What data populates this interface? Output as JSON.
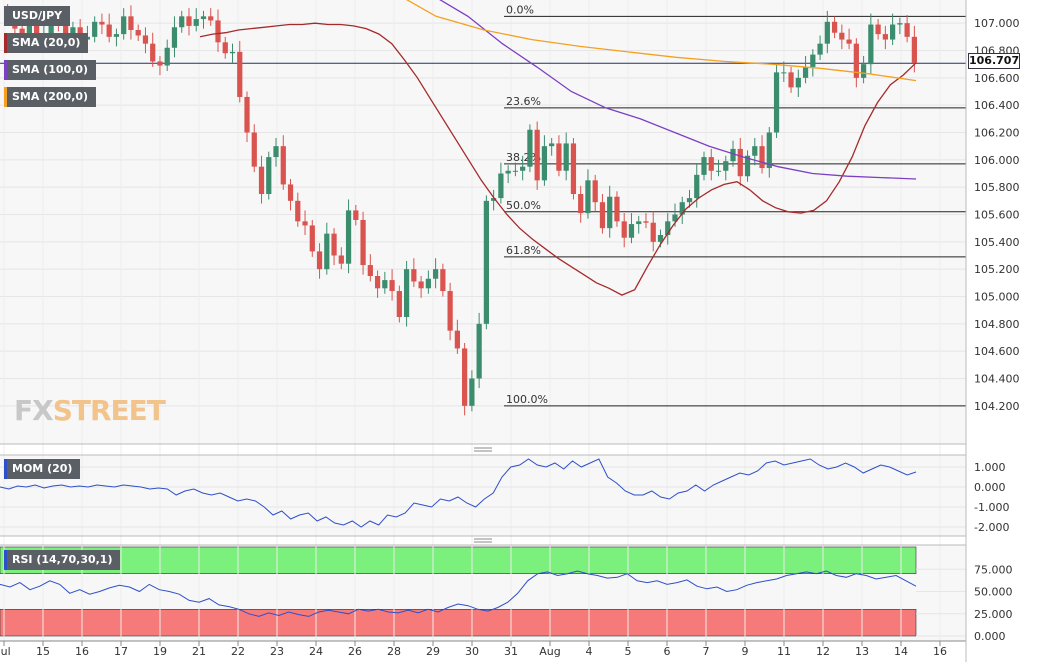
{
  "legend": {
    "symbol": "USD/JPY",
    "sma20": "SMA (20,0)",
    "sma100": "SMA (100,0)",
    "sma200": "SMA (200,0)"
  },
  "colors": {
    "up": "#3c8c6e",
    "down": "#d9534f",
    "sma20": "#a52a2a",
    "sma100": "#7b3fc4",
    "sma200": "#f5a020",
    "mom": "#2e4fc9",
    "rsi": "#2e4fc9",
    "rsi_over": "#7cf07c",
    "rsi_under": "#f77a7a"
  },
  "watermark": {
    "fx": "FX",
    "street": "STREET"
  },
  "current_price": "106.707",
  "chart_data": {
    "type": "candlestick",
    "timeframe_note": "4h candles",
    "x_ticks": [
      "Jul",
      "15",
      "16",
      "17",
      "19",
      "21",
      "22",
      "23",
      "24",
      "26",
      "28",
      "29",
      "30",
      "31",
      "Aug",
      "4",
      "5",
      "6",
      "7",
      "9",
      "11",
      "12",
      "13",
      "14",
      "16"
    ],
    "price_axis": {
      "ylim": [
        104.1,
        107.1
      ],
      "ticks": [
        "107.000",
        "106.800",
        "106.600",
        "106.400",
        "106.200",
        "106.000",
        "105.800",
        "105.600",
        "105.400",
        "105.200",
        "105.000",
        "104.800",
        "104.600",
        "104.400",
        "104.200"
      ]
    },
    "fibonacci": [
      {
        "label": "0.0%",
        "price": 107.05
      },
      {
        "label": "23.6%",
        "price": 106.38
      },
      {
        "label": "38.2%",
        "price": 105.97
      },
      {
        "label": "50.0%",
        "price": 105.62
      },
      {
        "label": "61.8%",
        "price": 105.29
      },
      {
        "label": "100.0%",
        "price": 104.2
      }
    ],
    "close": [
      107.05,
      106.96,
      106.88,
      106.98,
      106.86,
      106.92,
      107.05,
      107.01,
      106.92,
      106.97,
      106.88,
      106.9,
      107.01,
      106.99,
      106.9,
      106.92,
      107.05,
      106.95,
      106.91,
      106.85,
      106.72,
      106.69,
      106.82,
      106.97,
      107.05,
      106.98,
      107.03,
      107.05,
      107.02,
      106.86,
      106.78,
      106.79,
      106.46,
      106.2,
      105.95,
      105.75,
      106.02,
      106.1,
      105.82,
      105.7,
      105.55,
      105.52,
      105.33,
      105.2,
      105.46,
      105.3,
      105.24,
      105.63,
      105.56,
      105.23,
      105.15,
      105.06,
      105.12,
      105.04,
      104.85,
      105.2,
      105.11,
      105.06,
      105.13,
      105.2,
      105.04,
      104.75,
      104.62,
      104.2,
      104.4,
      104.8,
      105.7,
      105.72,
      105.9,
      105.92,
      105.92,
      105.95,
      106.22,
      105.85,
      106.1,
      106.12,
      105.92,
      106.12,
      105.75,
      105.61,
      105.85,
      105.69,
      105.5,
      105.73,
      105.55,
      105.43,
      105.53,
      105.55,
      105.54,
      105.4,
      105.45,
      105.55,
      105.6,
      105.69,
      105.72,
      105.89,
      106.02,
      105.92,
      105.92,
      105.99,
      106.08,
      105.88,
      106.03,
      106.1,
      105.94,
      106.2,
      106.64,
      106.64,
      106.53,
      106.6,
      106.68,
      106.77,
      106.85,
      107.01,
      106.93,
      106.88,
      106.85,
      106.6,
      106.7,
      106.99,
      106.92,
      106.88,
      106.99,
      107.0,
      106.9,
      106.71
    ],
    "sma20": [
      106.9,
      106.92,
      106.93,
      106.95,
      106.96,
      106.97,
      106.98,
      106.99,
      106.99,
      107.0,
      106.99,
      106.99,
      106.98,
      106.96,
      106.92,
      106.85,
      106.73,
      106.6,
      106.45,
      106.3,
      106.15,
      106.0,
      105.85,
      105.72,
      105.6,
      105.5,
      105.42,
      105.35,
      105.28,
      105.22,
      105.16,
      105.1,
      105.06,
      105.01,
      105.05,
      105.22,
      105.38,
      105.52,
      105.64,
      105.72,
      105.78,
      105.82,
      105.84,
      105.78,
      105.7,
      105.65,
      105.62,
      105.61,
      105.63,
      105.7,
      105.84,
      106.02,
      106.25,
      106.42,
      106.55,
      106.62,
      106.71
    ],
    "sma100": [
      107.55,
      107.45,
      107.35,
      107.2,
      107.05,
      106.85,
      106.68,
      106.5,
      106.38,
      106.3,
      106.2,
      106.1,
      106.02,
      105.95,
      105.9,
      105.88,
      105.87,
      105.86
    ],
    "sma200": [
      107.4,
      107.25,
      107.05,
      106.95,
      106.88,
      106.83,
      106.79,
      106.75,
      106.72,
      106.7,
      106.67,
      106.63,
      106.58
    ],
    "mom": {
      "name": "MOM (20)",
      "ylim": [
        -2.3,
        1.45
      ],
      "ticks": [
        "1.000",
        "0.000",
        "-1.000",
        "-2.000"
      ],
      "values": [
        0.0,
        -0.1,
        0.05,
        0.0,
        0.1,
        -0.05,
        0.05,
        0.1,
        0.0,
        0.05,
        0.0,
        0.1,
        0.05,
        0.0,
        0.1,
        0.05,
        0.0,
        -0.1,
        -0.05,
        -0.1,
        -0.4,
        -0.2,
        -0.1,
        -0.3,
        -0.4,
        -0.3,
        -0.5,
        -0.7,
        -0.6,
        -0.7,
        -1.0,
        -1.4,
        -1.2,
        -1.6,
        -1.4,
        -1.3,
        -1.7,
        -1.5,
        -1.8,
        -1.9,
        -1.7,
        -2.0,
        -1.7,
        -1.9,
        -1.4,
        -1.5,
        -1.3,
        -0.8,
        -0.9,
        -1.0,
        -0.6,
        -0.7,
        -0.5,
        -0.8,
        -1.0,
        -0.6,
        -0.3,
        0.5,
        1.0,
        1.1,
        1.4,
        1.1,
        1.0,
        1.2,
        0.9,
        1.3,
        1.0,
        1.2,
        1.4,
        0.5,
        0.2,
        -0.2,
        -0.4,
        -0.4,
        -0.2,
        -0.5,
        -0.6,
        -0.3,
        -0.2,
        0.1,
        -0.2,
        0.1,
        0.3,
        0.5,
        0.7,
        0.6,
        0.8,
        1.2,
        1.3,
        1.1,
        1.2,
        1.3,
        1.4,
        1.1,
        0.9,
        1.0,
        1.2,
        1.0,
        0.7,
        0.9,
        1.1,
        1.0,
        0.8,
        0.6,
        0.75
      ]
    },
    "rsi": {
      "name": "RSI (14,70,30,1)",
      "ylim": [
        0,
        100
      ],
      "overbought": 70,
      "oversold": 30,
      "ticks": [
        "75.000",
        "50.000",
        "25.000",
        "0.000"
      ],
      "values": [
        58,
        55,
        60,
        52,
        56,
        62,
        58,
        48,
        52,
        47,
        50,
        54,
        57,
        55,
        50,
        58,
        52,
        50,
        47,
        40,
        38,
        42,
        35,
        33,
        30,
        25,
        22,
        26,
        23,
        27,
        24,
        22,
        27,
        29,
        27,
        25,
        30,
        28,
        30,
        27,
        26,
        29,
        26,
        30,
        27,
        32,
        36,
        34,
        30,
        28,
        32,
        38,
        48,
        62,
        70,
        72,
        68,
        70,
        73,
        70,
        68,
        65,
        66,
        70,
        62,
        60,
        62,
        58,
        60,
        63,
        56,
        53,
        55,
        50,
        52,
        57,
        60,
        62,
        64,
        68,
        70,
        72,
        70,
        73,
        68,
        66,
        70,
        68,
        64,
        66,
        68,
        62,
        56
      ]
    }
  }
}
